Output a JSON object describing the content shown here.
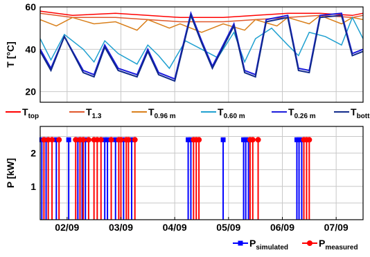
{
  "chart_data": [
    {
      "type": "line",
      "ylabel": "T  [°C]",
      "ylim": [
        15,
        60
      ],
      "yticks": [
        "20",
        "40",
        "60"
      ],
      "grid": true,
      "legend_position": "below",
      "series": [
        {
          "name": "T",
          "sub": "top",
          "color": "#ff0000",
          "x": [
            0.0,
            0.6,
            1.4,
            2.0,
            2.6,
            3.4,
            4.0,
            4.6,
            5.2,
            5.8,
            6.0
          ],
          "y": [
            58,
            56,
            57,
            56,
            55,
            55,
            56,
            57,
            57,
            56,
            57
          ]
        },
        {
          "name": "T",
          "sub": "1.3",
          "color": "#e0562a",
          "x": [
            0.0,
            0.6,
            1.4,
            2.0,
            2.6,
            3.4,
            4.0,
            4.6,
            5.2,
            5.8,
            6.0
          ],
          "y": [
            57,
            55,
            55,
            54,
            53,
            53,
            54,
            55,
            56,
            55,
            56
          ]
        },
        {
          "name": "T",
          "sub": "0.96 m",
          "color": "#d97f1a",
          "x": [
            0.0,
            0.3,
            0.6,
            1.0,
            1.4,
            1.8,
            2.0,
            2.4,
            2.6,
            3.0,
            3.4,
            3.8,
            4.0,
            4.4,
            4.6,
            5.0,
            5.2,
            5.6,
            5.8,
            6.0
          ],
          "y": [
            54,
            51,
            55,
            52,
            53,
            49,
            54,
            50,
            52,
            48,
            52,
            49,
            54,
            51,
            55,
            52,
            56,
            52,
            55,
            54
          ]
        },
        {
          "name": "T",
          "sub": "0.60 m",
          "color": "#1fa0d0",
          "x": [
            0.0,
            0.2,
            0.45,
            0.8,
            1.0,
            1.2,
            1.45,
            1.8,
            2.0,
            2.2,
            2.4,
            2.7,
            3.0,
            3.3,
            3.6,
            3.8,
            4.0,
            4.3,
            4.6,
            4.8,
            5.0,
            5.3,
            5.6,
            5.8,
            6.0
          ],
          "y": [
            45,
            35,
            47,
            40,
            34,
            44,
            38,
            33,
            42,
            37,
            31,
            44,
            40,
            36,
            48,
            34,
            45,
            50,
            42,
            37,
            48,
            46,
            42,
            55,
            45
          ]
        },
        {
          "name": "T",
          "sub": "0.26 m",
          "color": "#1a1adc",
          "x": [
            0.0,
            0.2,
            0.45,
            0.8,
            1.0,
            1.2,
            1.45,
            1.8,
            2.0,
            2.2,
            2.5,
            2.8,
            3.0,
            3.2,
            3.6,
            3.8,
            4.0,
            4.2,
            4.6,
            4.8,
            5.0,
            5.2,
            5.6,
            5.8,
            6.0
          ],
          "y": [
            40,
            31,
            46,
            30,
            28,
            42,
            31,
            28,
            40,
            29,
            26,
            57,
            44,
            32,
            52,
            30,
            28,
            54,
            56,
            31,
            30,
            56,
            57,
            38,
            40
          ]
        },
        {
          "name": "T",
          "sub": "bottom",
          "color": "#102a8a",
          "x": [
            0.0,
            0.2,
            0.45,
            0.8,
            1.0,
            1.2,
            1.45,
            1.8,
            2.0,
            2.2,
            2.5,
            2.8,
            3.0,
            3.2,
            3.6,
            3.8,
            4.0,
            4.2,
            4.6,
            4.8,
            5.0,
            5.2,
            5.6,
            5.8,
            6.0
          ],
          "y": [
            39,
            30,
            46,
            29,
            27,
            41,
            30,
            27,
            39,
            28,
            25,
            56,
            43,
            31,
            51,
            29,
            27,
            53,
            55,
            30,
            29,
            55,
            56,
            37,
            39
          ]
        }
      ]
    },
    {
      "type": "bar",
      "ylabel": "P  [kW]",
      "ylim": [
        0,
        2.8
      ],
      "yticks": [
        "1",
        "2"
      ],
      "xticks": [
        "02/09",
        "03/09",
        "04/09",
        "05/09",
        "06/09",
        "07/09"
      ],
      "grid": true,
      "legend_position": "bottom-right",
      "series": [
        {
          "name": "P",
          "sub": "simulated",
          "color": "#0000ff",
          "marker": "square",
          "value": 2.4,
          "x": [
            0.03,
            0.11,
            0.3,
            0.53,
            0.7,
            0.78,
            0.84,
            1.2,
            1.25,
            1.4,
            1.55,
            1.7,
            2.75,
            2.8,
            3.4,
            3.78,
            3.82,
            3.87,
            4.77,
            4.81,
            4.86
          ]
        },
        {
          "name": "P",
          "sub": "measured",
          "color": "#ff0000",
          "marker": "circle",
          "value": 2.4,
          "x": [
            0.07,
            0.15,
            0.22,
            0.35,
            0.66,
            0.74,
            0.8,
            0.9,
            1.0,
            1.06,
            1.13,
            1.32,
            1.46,
            1.5,
            1.6,
            1.64,
            1.76,
            2.85,
            2.9,
            2.95,
            3.9,
            3.95,
            4.05,
            4.9,
            4.95,
            5.0
          ]
        }
      ]
    }
  ]
}
